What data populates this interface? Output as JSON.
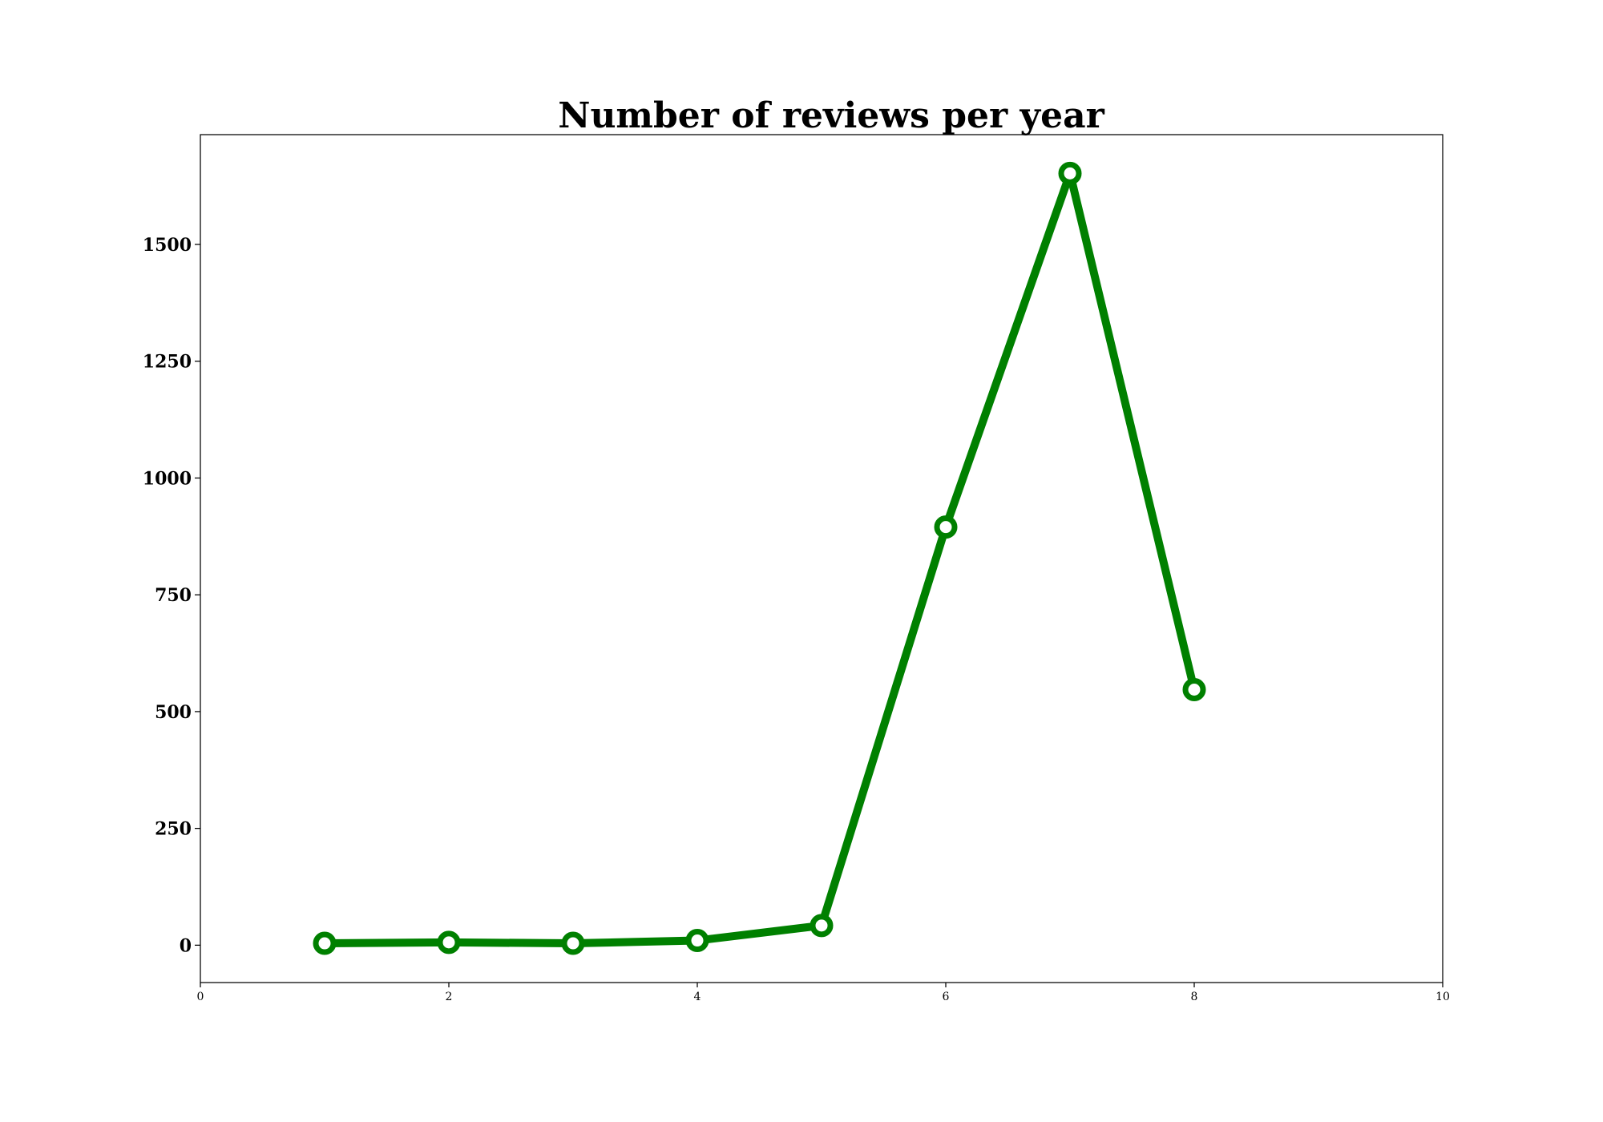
{
  "chart_data": {
    "type": "line",
    "title": "Number of reviews per year",
    "xlabel": "",
    "ylabel": "",
    "xlim": [
      0,
      10
    ],
    "ylim": [
      -80,
      1735
    ],
    "xticks": [
      0,
      2,
      4,
      6,
      8,
      10
    ],
    "xtick_labels": [
      "0",
      "2",
      "4",
      "6",
      "8",
      "10"
    ],
    "yticks": [
      0,
      250,
      500,
      750,
      1000,
      1250,
      1500
    ],
    "ytick_labels": [
      "0",
      "250",
      "500",
      "750",
      "1000",
      "1250",
      "1500"
    ],
    "grid": false,
    "series": [
      {
        "x": [
          1,
          2,
          3,
          4,
          5,
          6,
          7,
          8
        ],
        "values": [
          4,
          6,
          4,
          10,
          42,
          895,
          1652,
          547
        ],
        "color": "#008000",
        "marker": "circle",
        "marker_face_color": "#ffffff"
      }
    ]
  }
}
